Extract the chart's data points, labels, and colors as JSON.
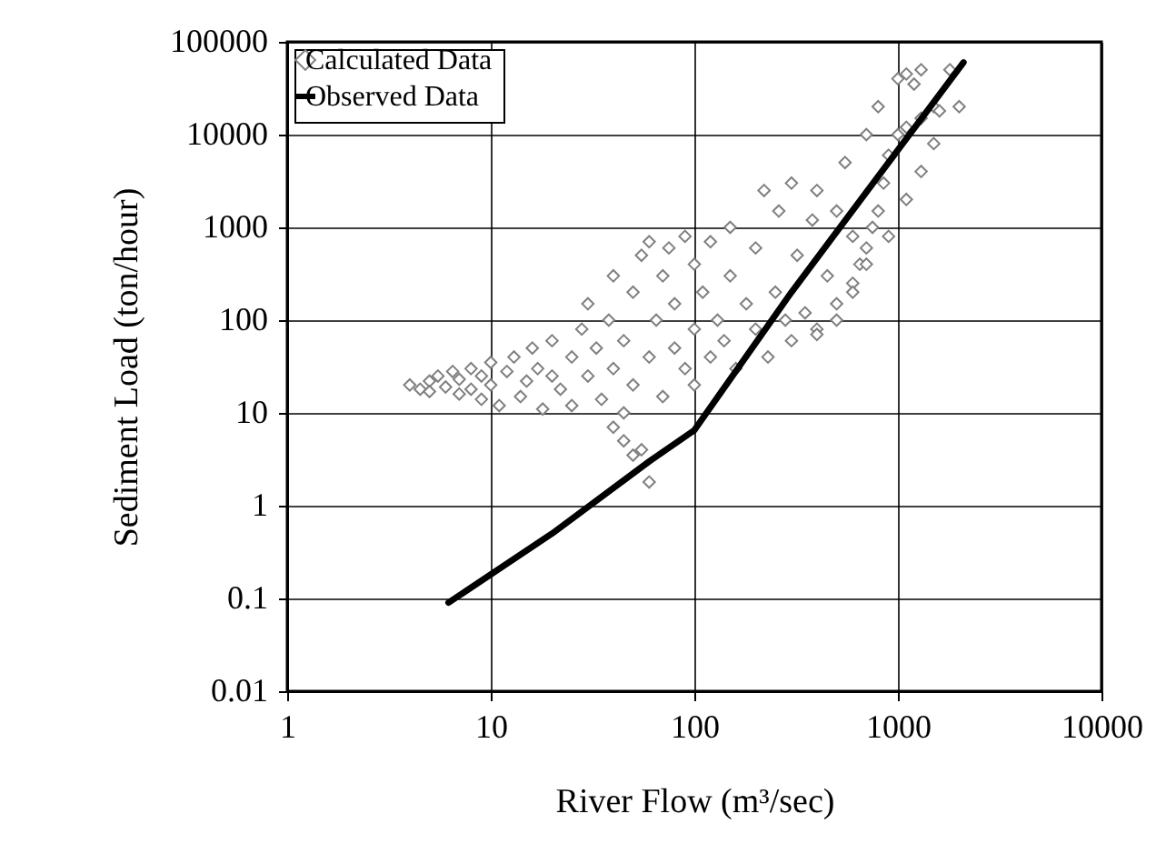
{
  "chart_data": {
    "type": "scatter",
    "xlabel": "River Flow (m³/sec)",
    "ylabel": "Sediment Load (ton/hour)",
    "log": "xy",
    "grid": true,
    "legend": "top left",
    "xlim": [
      1,
      10000
    ],
    "xticks": [
      1,
      10,
      100,
      1000,
      10000
    ],
    "ylim": [
      0.01,
      100000
    ],
    "yticks": [
      0.01,
      0.1,
      1,
      10,
      100,
      1000,
      10000,
      100000
    ],
    "series": [
      {
        "name": "Calculated Data",
        "marker": "diamond",
        "color": "#808080",
        "x": [
          4,
          4.5,
          5,
          5,
          5.5,
          6,
          6.5,
          7,
          7,
          8,
          8,
          9,
          9,
          10,
          10,
          11,
          12,
          13,
          14,
          15,
          16,
          17,
          18,
          20,
          20,
          22,
          25,
          25,
          28,
          30,
          30,
          33,
          35,
          38,
          40,
          40,
          40,
          45,
          45,
          45,
          50,
          50,
          50,
          55,
          55,
          60,
          60,
          60,
          65,
          70,
          70,
          75,
          80,
          80,
          90,
          90,
          100,
          100,
          100,
          110,
          120,
          120,
          130,
          140,
          150,
          150,
          160,
          180,
          200,
          200,
          220,
          230,
          250,
          260,
          280,
          300,
          300,
          320,
          350,
          380,
          400,
          400,
          400,
          450,
          500,
          500,
          500,
          550,
          600,
          600,
          600,
          650,
          700,
          700,
          700,
          750,
          800,
          800,
          850,
          900,
          900,
          1000,
          1000,
          1100,
          1100,
          1100,
          1200,
          1300,
          1300,
          1300,
          1500,
          1500,
          1600,
          1800,
          2000
        ],
        "values": [
          20,
          18,
          22,
          17,
          25,
          19,
          28,
          16,
          23,
          30,
          18,
          14,
          25,
          20,
          35,
          12,
          28,
          40,
          15,
          22,
          50,
          30,
          11,
          25,
          60,
          18,
          40,
          12,
          80,
          25,
          150,
          50,
          14,
          100,
          30,
          300,
          7,
          60,
          10,
          5,
          200,
          20,
          3.5,
          500,
          4,
          1.8,
          40,
          700,
          100,
          300,
          15,
          600,
          50,
          150,
          800,
          30,
          400,
          80,
          20,
          200,
          700,
          40,
          100,
          60,
          300,
          1000,
          30,
          150,
          80,
          600,
          2500,
          40,
          200,
          1500,
          100,
          60,
          3000,
          500,
          120,
          1200,
          80,
          2500,
          70,
          300,
          150,
          1500,
          100,
          5000,
          250,
          800,
          200,
          400,
          10000,
          600,
          400,
          1000,
          20000,
          1500,
          3000,
          6000,
          800,
          40000,
          10000,
          45000,
          12000,
          2000,
          35000,
          50000,
          15000,
          4000,
          20000,
          8000,
          18000,
          50000,
          20000
        ]
      },
      {
        "name": "Observed Data",
        "type": "line",
        "color": "#000000",
        "x": [
          6.2,
          20,
          60,
          100,
          300,
          2100
        ],
        "values": [
          0.09,
          0.5,
          3,
          6.5,
          200,
          60000
        ]
      }
    ]
  }
}
